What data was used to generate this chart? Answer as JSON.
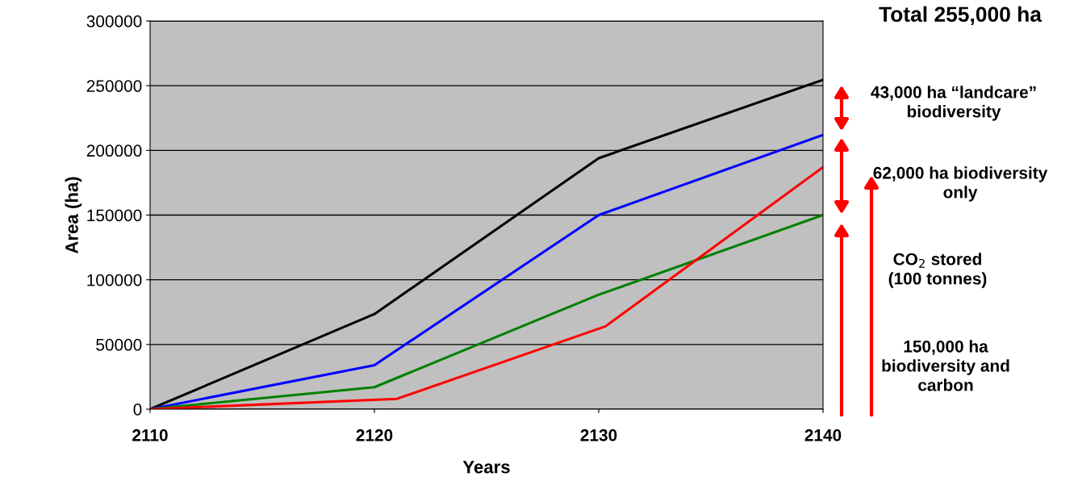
{
  "chart_data": {
    "type": "line",
    "xlabel": "Years",
    "ylabel": "Area (ha)",
    "xlim": [
      2110,
      2140
    ],
    "xticks": [
      2110,
      2120,
      2130,
      2140
    ],
    "ylim": [
      0,
      300000
    ],
    "yticks": [
      0,
      50000,
      100000,
      150000,
      200000,
      250000,
      300000
    ],
    "grid": "y",
    "legend": false,
    "marker": "none",
    "line_style": "solid",
    "series": [
      {
        "color": "#000000",
        "x": [
          2110,
          2120,
          2130,
          2140
        ],
        "values": [
          0,
          73500,
          194000,
          254500
        ]
      },
      {
        "color": "#0000ff",
        "x": [
          2110,
          2120,
          2130,
          2140
        ],
        "values": [
          0,
          34000,
          150000,
          212000
        ]
      },
      {
        "color": "#008000",
        "x": [
          2110,
          2120,
          2130,
          2140
        ],
        "values": [
          0,
          17000,
          88500,
          150000
        ]
      },
      {
        "color": "#ff0000",
        "x": [
          2110,
          2121,
          2130.3,
          2140
        ],
        "values": [
          0,
          8000,
          64000,
          187000
        ]
      }
    ],
    "annotations": [
      "Total 255,000 ha",
      "43,000 ha “landcare”\nbiodiversity",
      "62,000 ha biodiversity\nonly",
      "CO$_{2}$ stored\n(100 tonnes)",
      "150,000 ha\nbiodiversity and\ncarbon"
    ]
  }
}
